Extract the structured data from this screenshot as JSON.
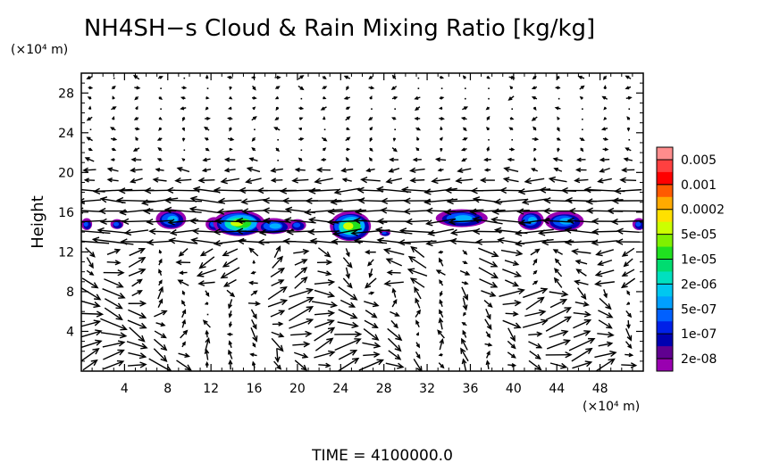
{
  "chart_data": {
    "type": "heatmap",
    "title": "NH4SH−s Cloud & Rain Mixing Ratio [kg/kg]",
    "ylabel": "Height",
    "x_unit": "(×10⁴ m)",
    "y_unit": "(×10⁴ m)",
    "time_label": "TIME  =  4100000.0",
    "xlim": [
      0,
      52
    ],
    "ylim": [
      0,
      30
    ],
    "x_ticks": [
      "4",
      "8",
      "12",
      "16",
      "20",
      "24",
      "28",
      "32",
      "36",
      "40",
      "44",
      "48"
    ],
    "y_ticks": [
      "4",
      "8",
      "12",
      "16",
      "20",
      "24",
      "28"
    ],
    "colorbar": {
      "labels": [
        "0.005",
        "0.001",
        "0.0002",
        "5e-05",
        "1e-05",
        "2e-06",
        "5e-07",
        "1e-07",
        "2e-08"
      ],
      "colors": [
        "#ff8c8c",
        "#ff4040",
        "#ff0000",
        "#ff5a00",
        "#ffaa00",
        "#ffe000",
        "#ccff00",
        "#80f000",
        "#20e020",
        "#00dc70",
        "#00e0c0",
        "#00c8f0",
        "#00a0ff",
        "#0060ff",
        "#0020e8",
        "#0000b0",
        "#600090",
        "#9900b0"
      ]
    },
    "cloud_cells": [
      {
        "x": 0.5,
        "y": 14.8,
        "rx": 0.5,
        "ry": 0.6,
        "peak": 0.35
      },
      {
        "x": 3.3,
        "y": 14.8,
        "rx": 0.6,
        "ry": 0.5,
        "peak": 0.3
      },
      {
        "x": 8.3,
        "y": 15.3,
        "rx": 1.4,
        "ry": 1.0,
        "peak": 0.55
      },
      {
        "x": 12.3,
        "y": 14.8,
        "rx": 0.8,
        "ry": 0.7,
        "peak": 0.4
      },
      {
        "x": 14.6,
        "y": 14.9,
        "rx": 2.4,
        "ry": 1.3,
        "peak": 0.85
      },
      {
        "x": 17.8,
        "y": 14.6,
        "rx": 1.6,
        "ry": 0.8,
        "peak": 0.5
      },
      {
        "x": 20.0,
        "y": 14.7,
        "rx": 0.8,
        "ry": 0.6,
        "peak": 0.35
      },
      {
        "x": 24.9,
        "y": 14.6,
        "rx": 1.9,
        "ry": 1.5,
        "peak": 0.85
      },
      {
        "x": 28.1,
        "y": 13.9,
        "rx": 0.5,
        "ry": 0.3,
        "peak": 0.2
      },
      {
        "x": 35.2,
        "y": 15.4,
        "rx": 2.4,
        "ry": 0.9,
        "peak": 0.5
      },
      {
        "x": 41.6,
        "y": 15.2,
        "rx": 1.2,
        "ry": 1.0,
        "peak": 0.5
      },
      {
        "x": 44.7,
        "y": 15.1,
        "rx": 1.8,
        "ry": 1.0,
        "peak": 0.55
      },
      {
        "x": 51.6,
        "y": 14.8,
        "rx": 0.6,
        "ry": 0.6,
        "peak": 0.3
      }
    ]
  }
}
